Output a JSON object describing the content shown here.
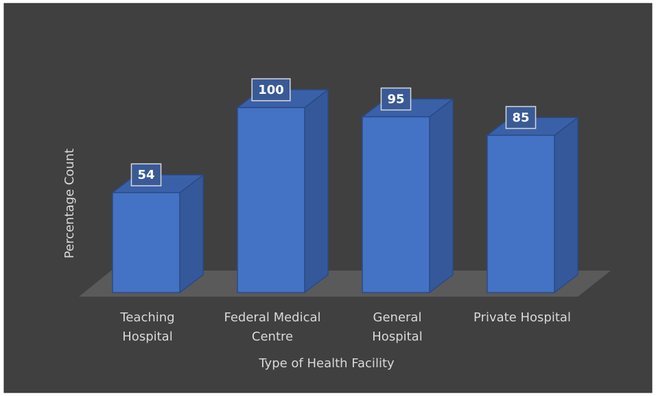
{
  "chart_data": {
    "type": "bar3d",
    "categories": [
      "Teaching Hospital",
      "Federal Medical Centre",
      "General Hospital",
      "Private Hospital"
    ],
    "values": [
      54,
      100,
      95,
      85
    ],
    "color": "#4472c4",
    "ylim": [
      0,
      100
    ],
    "y_label": "Percentage Count",
    "x_label": "Type of Health Facility"
  }
}
